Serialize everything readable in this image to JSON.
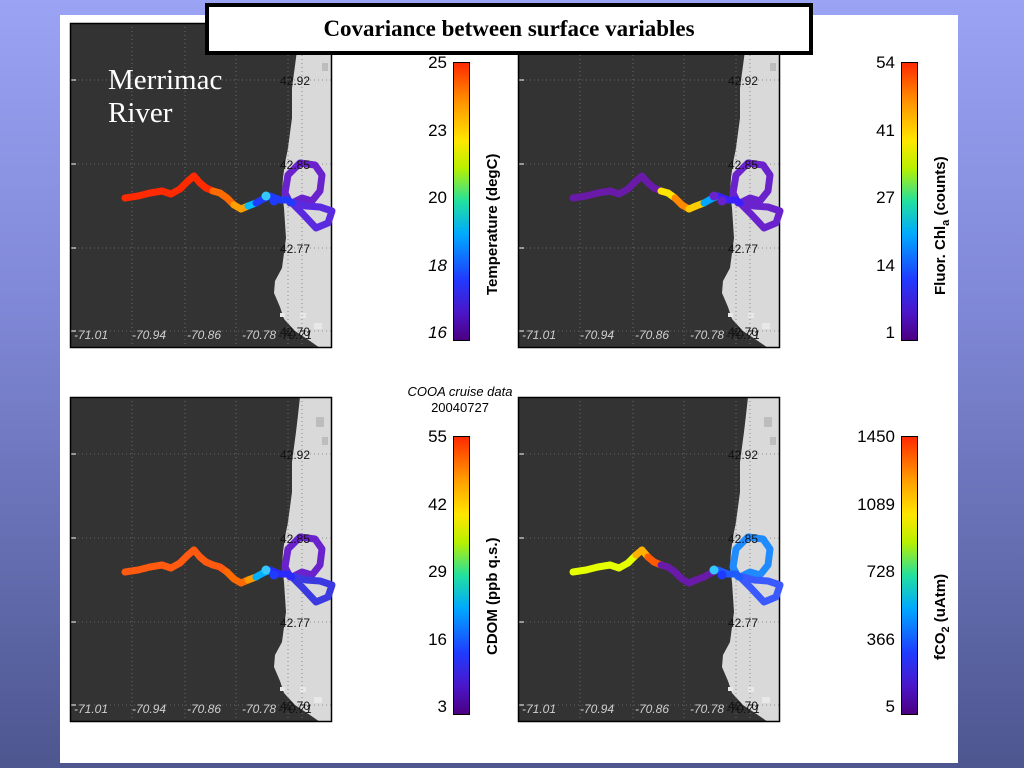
{
  "title": "Covariance between surface variables",
  "annotation": {
    "line1": "Merrimac",
    "line2": "River"
  },
  "cruise_note": {
    "name": "COOA cruise data",
    "date": "20040727"
  },
  "colors": {
    "land": "#d9d9d9",
    "water": "#333333",
    "frame": "#000000"
  },
  "chart_data": [
    {
      "type": "scatter",
      "variable": "Temperature (degC)",
      "lat_ticks": [
        "42.92",
        "42.85",
        "42.77",
        "42.70"
      ],
      "lon_ticks": [
        "-71.01",
        "-70.94",
        "-70.86",
        "-70.78",
        "-70.71"
      ],
      "colorbar": {
        "label": "Temperature (degC)",
        "ticks": [
          "25",
          "23",
          "20",
          "18",
          "16"
        ],
        "range": [
          16,
          25
        ]
      },
      "track_colors": "warm (red/orange) in river, cool (blue/purple) offshore"
    },
    {
      "type": "scatter",
      "variable": "Fluor. Chl_a (counts)",
      "lat_ticks": [
        "42.92",
        "42.85",
        "42.77",
        "42.70"
      ],
      "lon_ticks": [
        "-71.01",
        "-70.94",
        "-70.86",
        "-70.78",
        "-70.71"
      ],
      "colorbar": {
        "label_main": "Fluor. Chl",
        "label_sub": "a",
        "label_unit": " (counts)",
        "ticks": [
          "54",
          "41",
          "27",
          "14",
          "1"
        ],
        "range": [
          1,
          54
        ]
      },
      "track_colors": "low (purple) upstream and offshore, high (yellow/orange) mid-estuary"
    },
    {
      "type": "scatter",
      "variable": "CDOM (ppb q.s.)",
      "lat_ticks": [
        "42.92",
        "42.85",
        "42.77",
        "42.70"
      ],
      "lon_ticks": [
        "-71.01",
        "-70.94",
        "-70.86",
        "-70.78",
        "-70.71"
      ],
      "colorbar": {
        "label": "CDOM (ppb q.s.)",
        "ticks": [
          "55",
          "42",
          "29",
          "16",
          "3"
        ],
        "range": [
          3,
          55
        ]
      },
      "track_colors": "high (orange/red) in river, low (purple) offshore"
    },
    {
      "type": "scatter",
      "variable": "fCO2 (uAtm)",
      "lat_ticks": [
        "42.92",
        "42.85",
        "42.77",
        "42.70"
      ],
      "lon_ticks": [
        "-71.01",
        "-70.94",
        "-70.86",
        "-70.78",
        "-70.71"
      ],
      "colorbar": {
        "label_main": "fCO",
        "label_sub": "2",
        "label_unit": " (uAtm)",
        "ticks": [
          "1450",
          "1089",
          "728",
          "366",
          "5"
        ],
        "range": [
          5,
          1450
        ]
      },
      "track_colors": "high (yellow/orange) upstream, low (purple) mid, light blue offshore loops"
    }
  ]
}
